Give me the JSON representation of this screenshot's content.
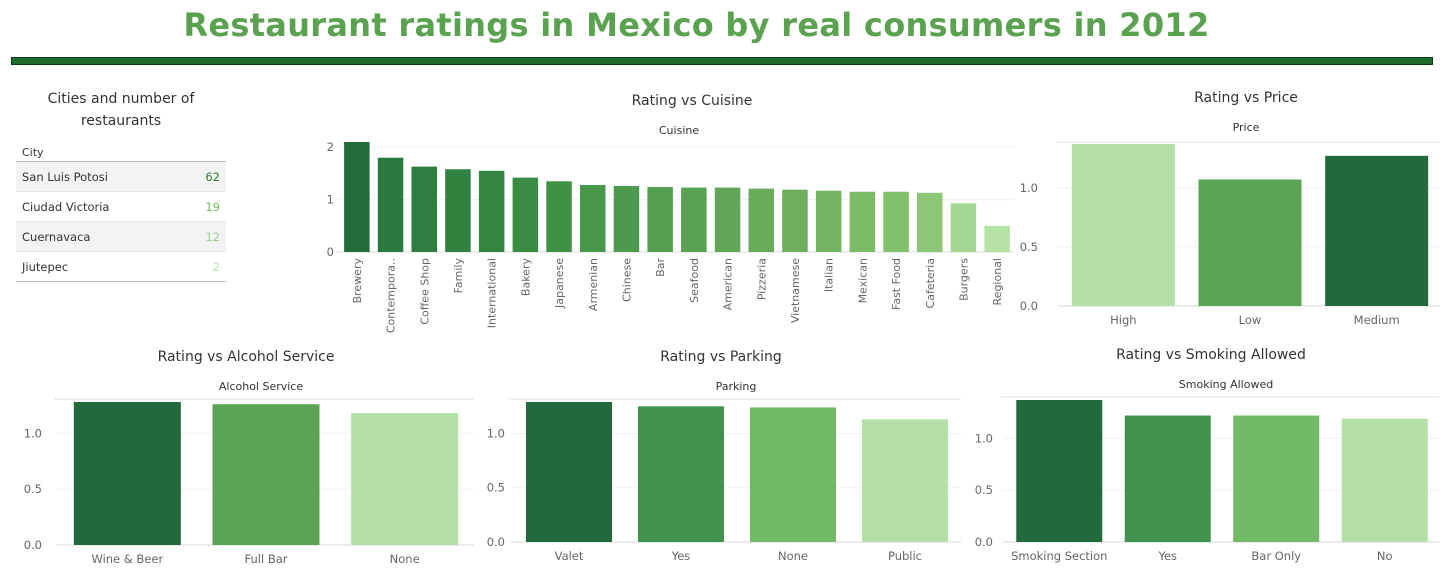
{
  "dashboard": {
    "title": "Restaurant ratings in Mexico by real consumers in 2012"
  },
  "cities": {
    "title": "Cities and number of restaurants",
    "column_header": "City",
    "rows": [
      {
        "city": "San Luis Potosi",
        "count": 62,
        "color": "#2c7a3a"
      },
      {
        "city": "Ciudad Victoria",
        "count": 19,
        "color": "#74b866"
      },
      {
        "city": "Cuernavaca",
        "count": 12,
        "color": "#9ccf8e"
      },
      {
        "city": "Jiutepec",
        "count": 2,
        "color": "#b8e0ac"
      }
    ]
  },
  "chart_data": [
    {
      "id": "cuisine",
      "type": "bar",
      "title": "Rating vs Cuisine",
      "header": "Cuisine",
      "categories": [
        "Brewery",
        "Contempora..",
        "Coffee Shop",
        "Family",
        "International",
        "Bakery",
        "Japanese",
        "Armenian",
        "Chinese",
        "Bar",
        "Seafood",
        "American",
        "Pizzeria",
        "Vietnamese",
        "Italian",
        "Mexican",
        "Fast Food",
        "Cafeteria",
        "Burgers",
        "Regional"
      ],
      "values": [
        2.1,
        1.8,
        1.63,
        1.58,
        1.55,
        1.42,
        1.35,
        1.28,
        1.26,
        1.24,
        1.23,
        1.23,
        1.21,
        1.19,
        1.17,
        1.15,
        1.15,
        1.13,
        0.93,
        0.5
      ],
      "colors": [
        "#246b3a",
        "#287a3f",
        "#2c7d3e",
        "#2f823f",
        "#33863f",
        "#3b8c43",
        "#409146",
        "#48964a",
        "#4e9a4d",
        "#549e50",
        "#5aa253",
        "#60a656",
        "#67ab5b",
        "#6daf5e",
        "#73b462",
        "#7abb66",
        "#82c06c",
        "#8cc775",
        "#a4d695",
        "#b5e2a5"
      ],
      "yticks": [
        0,
        1,
        2
      ],
      "ylim": [
        0,
        2.1
      ]
    },
    {
      "id": "price",
      "type": "bar",
      "title": "Rating vs Price",
      "header": "Price",
      "categories": [
        "High",
        "Low",
        "Medium"
      ],
      "values": [
        1.37,
        1.07,
        1.27
      ],
      "colors": [
        "#b3e0a6",
        "#5aa453",
        "#226a3b"
      ],
      "yticks": [
        "0.0",
        "0.5",
        "1.0"
      ],
      "ylim": [
        0,
        1.37
      ]
    },
    {
      "id": "alcohol",
      "type": "bar",
      "title": "Rating vs Alcohol Service",
      "header": "Alcohol Service",
      "categories": [
        "Wine & Beer",
        "Full Bar",
        "None"
      ],
      "values": [
        1.28,
        1.26,
        1.18
      ],
      "colors": [
        "#226a3b",
        "#5aa453",
        "#b3e0a6"
      ],
      "yticks": [
        "0.0",
        "0.5",
        "1.0"
      ],
      "ylim": [
        0,
        1.28
      ]
    },
    {
      "id": "parking",
      "type": "bar",
      "title": "Rating vs Parking",
      "header": "Parking",
      "categories": [
        "Valet",
        "Yes",
        "None",
        "Public"
      ],
      "values": [
        1.29,
        1.25,
        1.24,
        1.13
      ],
      "colors": [
        "#226a3b",
        "#41924e",
        "#72b965",
        "#b3e0a6"
      ],
      "yticks": [
        "0.0",
        "0.5",
        "1.0"
      ],
      "ylim": [
        0,
        1.29
      ]
    },
    {
      "id": "smoking",
      "type": "bar",
      "title": "Rating vs Smoking Allowed",
      "header": "Smoking Allowed",
      "categories": [
        "Smoking Section",
        "Yes",
        "Bar Only",
        "No"
      ],
      "values": [
        1.37,
        1.22,
        1.22,
        1.19
      ],
      "colors": [
        "#226a3b",
        "#41924e",
        "#72b965",
        "#b3e0a6"
      ],
      "yticks": [
        "0.0",
        "0.5",
        "1.0"
      ],
      "ylim": [
        0,
        1.37
      ]
    }
  ]
}
